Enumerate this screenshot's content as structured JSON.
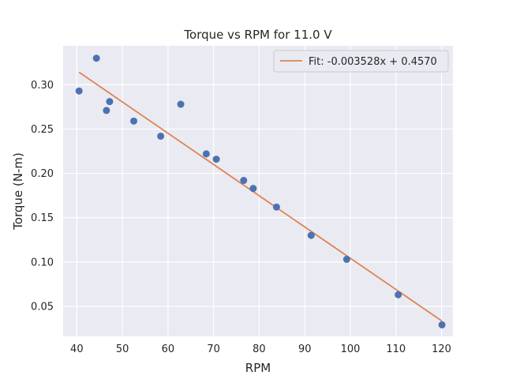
{
  "chart_data": {
    "type": "scatter",
    "title": "Torque vs RPM for 11.0 V",
    "xlabel": "RPM",
    "ylabel": "Torque (N-m)",
    "xlim": [
      37,
      122.5
    ],
    "ylim": [
      0.016,
      0.344
    ],
    "xticks": [
      40,
      50,
      60,
      70,
      80,
      90,
      100,
      110,
      120
    ],
    "yticks": [
      0.05,
      0.1,
      0.15,
      0.2,
      0.25,
      0.3
    ],
    "ytick_labels": [
      "0.05",
      "0.10",
      "0.15",
      "0.20",
      "0.25",
      "0.30"
    ],
    "grid": true,
    "legend_position": "top-right",
    "series": [
      {
        "kind": "scatter",
        "color": "#4c72b0",
        "points": [
          [
            40.5,
            0.293
          ],
          [
            44.3,
            0.33
          ],
          [
            46.5,
            0.271
          ],
          [
            47.2,
            0.281
          ],
          [
            52.5,
            0.259
          ],
          [
            58.4,
            0.242
          ],
          [
            62.8,
            0.278
          ],
          [
            68.4,
            0.222
          ],
          [
            70.6,
            0.216
          ],
          [
            76.6,
            0.192
          ],
          [
            78.7,
            0.183
          ],
          [
            83.8,
            0.162
          ],
          [
            91.4,
            0.13
          ],
          [
            99.2,
            0.103
          ],
          [
            110.5,
            0.063
          ],
          [
            120.1,
            0.029
          ]
        ]
      },
      {
        "kind": "fit-line",
        "name": "Fit: -0.003528x + 0.4570",
        "color": "#dd8452",
        "slope": -0.003528,
        "intercept": 0.457,
        "x_range": [
          40.5,
          120.1
        ]
      }
    ]
  }
}
